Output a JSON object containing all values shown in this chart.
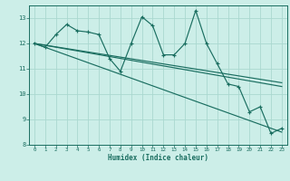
{
  "xlabel": "Humidex (Indice chaleur)",
  "background_color": "#cceee8",
  "grid_color": "#aad8d0",
  "line_color": "#1a6e60",
  "xlim": [
    -0.5,
    23.5
  ],
  "ylim": [
    8,
    13.5
  ],
  "yticks": [
    8,
    9,
    10,
    11,
    12,
    13
  ],
  "xticks": [
    0,
    1,
    2,
    3,
    4,
    5,
    6,
    7,
    8,
    9,
    10,
    11,
    12,
    13,
    14,
    15,
    16,
    17,
    18,
    19,
    20,
    21,
    22,
    23
  ],
  "wavy_x": [
    0,
    1,
    2,
    3,
    4,
    5,
    6,
    7,
    8,
    9,
    10,
    11,
    12,
    13,
    14,
    15,
    16,
    17,
    18,
    19,
    20,
    21,
    22,
    23
  ],
  "wavy_y": [
    12.0,
    11.85,
    12.35,
    12.75,
    12.5,
    12.45,
    12.35,
    11.4,
    10.9,
    12.0,
    13.05,
    12.7,
    11.55,
    11.55,
    12.0,
    13.3,
    12.0,
    11.2,
    10.4,
    10.3,
    9.3,
    9.5,
    8.45,
    8.65
  ],
  "trend1_x": [
    0,
    23
  ],
  "trend1_y": [
    12.0,
    8.5
  ],
  "trend2_x": [
    0,
    23
  ],
  "trend2_y": [
    12.0,
    10.45
  ],
  "trend3_x": [
    0,
    23
  ],
  "trend3_y": [
    12.0,
    10.3
  ]
}
